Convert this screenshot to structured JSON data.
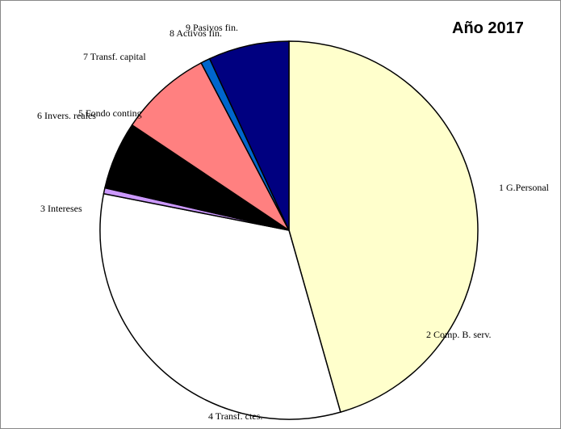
{
  "chart_data": {
    "type": "pie",
    "title": "Año 2017",
    "slices": [
      {
        "label": "1 G.Personal",
        "value": 45.6,
        "color": "#FFFFCC"
      },
      {
        "label": "2 Comp. B. serv.",
        "value": 0.0,
        "color": "#FFFFCC"
      },
      {
        "label": "3 Intereses",
        "value": 0.0,
        "color": "#F2F2F2"
      },
      {
        "label": "4 Transf. ctes.",
        "value": 32.5,
        "color": "#FFFFFF"
      },
      {
        "label": "5 Fondo conting",
        "value": 0.5,
        "color": "#CC99FF"
      },
      {
        "label": "6 Invers. reales",
        "value": 5.8,
        "color": "#000000"
      },
      {
        "label": "7 Transf. capital",
        "value": 7.9,
        "color": "#FF8080"
      },
      {
        "label": "8 Activos fin.",
        "value": 0.8,
        "color": "#0066CC"
      },
      {
        "label": "9 Pasivos fin.",
        "value": 6.9,
        "color": "#000080"
      }
    ]
  }
}
